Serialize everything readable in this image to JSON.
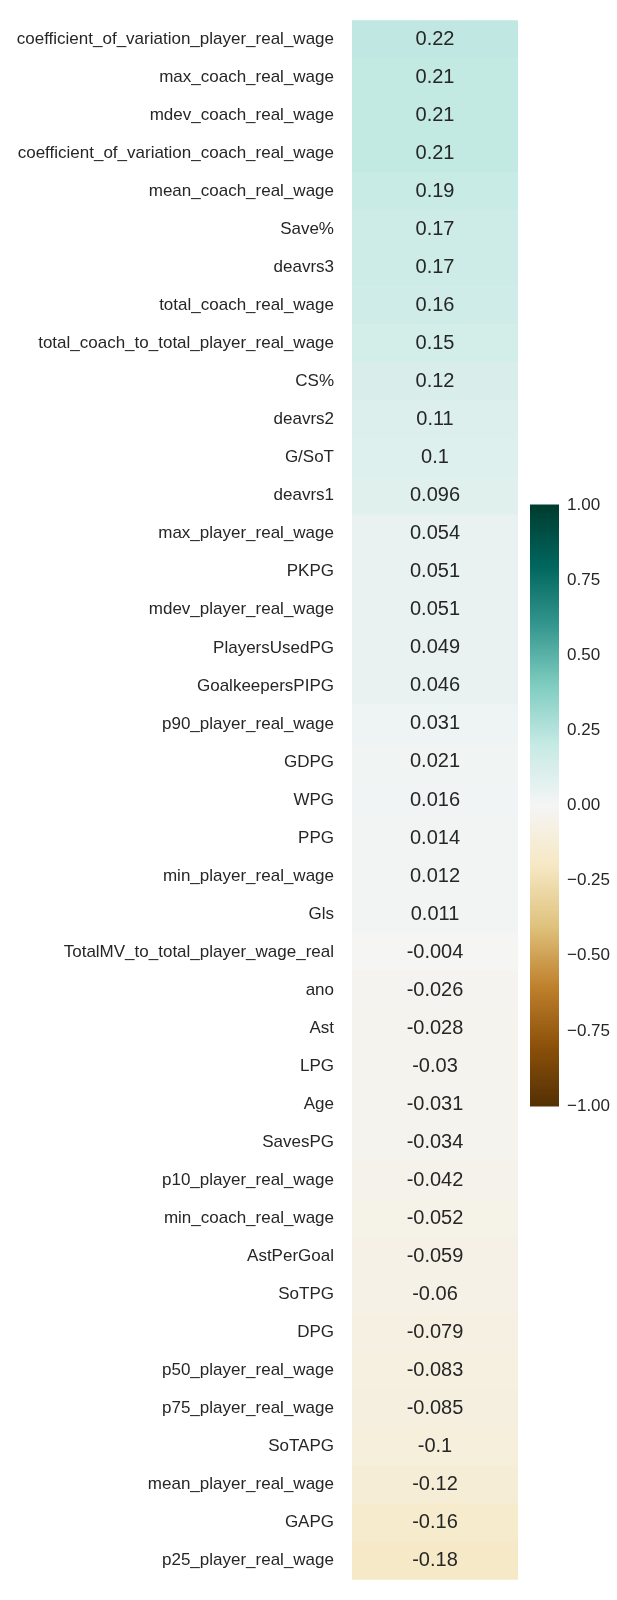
{
  "chart_data": {
    "type": "heatmap",
    "categories": [
      null
    ],
    "y_categories": [
      "coefficient_of_variation_player_real_wage",
      "max_coach_real_wage",
      "mdev_coach_real_wage",
      "coefficient_of_variation_coach_real_wage",
      "mean_coach_real_wage",
      "Save%",
      "deavrs3",
      "total_coach_real_wage",
      "total_coach_to_total_player_real_wage",
      "CS%",
      "deavrs2",
      "G/SoT",
      "deavrs1",
      "max_player_real_wage",
      "PKPG",
      "mdev_player_real_wage",
      "PlayersUsedPG",
      "GoalkeepersPIPG",
      "p90_player_real_wage",
      "GDPG",
      "WPG",
      "PPG",
      "min_player_real_wage",
      "Gls",
      "TotalMV_to_total_player_wage_real",
      "ano",
      "Ast",
      "LPG",
      "Age",
      "SavesPG",
      "p10_player_real_wage",
      "min_coach_real_wage",
      "AstPerGoal",
      "SoTPG",
      "DPG",
      "p50_player_real_wage",
      "p75_player_real_wage",
      "SoTAPG",
      "mean_player_real_wage",
      "GAPG",
      "p25_player_real_wage"
    ],
    "cells": [
      [
        0.22
      ],
      [
        0.21
      ],
      [
        0.21
      ],
      [
        0.21
      ],
      [
        0.19
      ],
      [
        0.17
      ],
      [
        0.17
      ],
      [
        0.16
      ],
      [
        0.15
      ],
      [
        0.12
      ],
      [
        0.11
      ],
      [
        0.1
      ],
      [
        0.096
      ],
      [
        0.054
      ],
      [
        0.051
      ],
      [
        0.051
      ],
      [
        0.049
      ],
      [
        0.046
      ],
      [
        0.031
      ],
      [
        0.021
      ],
      [
        0.016
      ],
      [
        0.014
      ],
      [
        0.012
      ],
      [
        0.011
      ],
      [
        -0.004
      ],
      [
        -0.026
      ],
      [
        -0.028
      ],
      [
        -0.03
      ],
      [
        -0.031
      ],
      [
        -0.034
      ],
      [
        -0.042
      ],
      [
        -0.052
      ],
      [
        -0.059
      ],
      [
        -0.06
      ],
      [
        -0.079
      ],
      [
        -0.083
      ],
      [
        -0.085
      ],
      [
        -0.1
      ],
      [
        -0.12
      ],
      [
        -0.16
      ],
      [
        -0.18
      ]
    ],
    "data_labels": true,
    "clim": [
      -1,
      1
    ],
    "cticks": [
      {
        "value": -1,
        "label": "−1.00"
      },
      {
        "value": -0.75,
        "label": "−0.75"
      },
      {
        "value": -0.5,
        "label": "−0.50"
      },
      {
        "value": -0.25,
        "label": "−0.25"
      },
      {
        "value": 0,
        "label": "0.00"
      },
      {
        "value": 0.25,
        "label": "0.25"
      },
      {
        "value": 0.5,
        "label": "0.50"
      },
      {
        "value": 0.75,
        "label": "0.75"
      },
      {
        "value": 1,
        "label": "1.00"
      }
    ]
  }
}
